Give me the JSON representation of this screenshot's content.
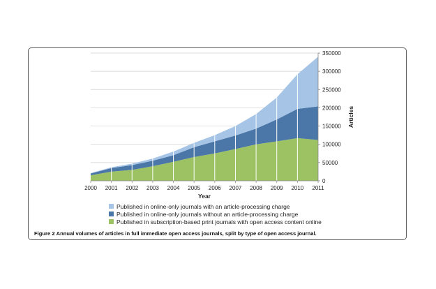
{
  "caption": {
    "label": "Figure 2",
    "text": "Annual volumes of articles in full immediate open access journals, split by type of open access journal."
  },
  "chart_data": {
    "type": "area",
    "stacked": true,
    "x": [
      2000,
      2001,
      2002,
      2003,
      2004,
      2005,
      2006,
      2007,
      2008,
      2009,
      2010,
      2011
    ],
    "xlabel": "Year",
    "ylabel": "Articles",
    "ylim": [
      0,
      350000
    ],
    "yticks": [
      0,
      50000,
      100000,
      150000,
      200000,
      250000,
      300000,
      350000
    ],
    "ytick_labels": [
      "0",
      "50000",
      "100000",
      "150000",
      "200000",
      "250000",
      "300000",
      "350000"
    ],
    "y_axis_side": "right",
    "grid": true,
    "legend_position": "bottom",
    "series": [
      {
        "name": "Published in subscription-based print journals with open access content online",
        "color": "#9dc263",
        "values": [
          15000,
          25000,
          30000,
          40000,
          52000,
          65000,
          75000,
          87000,
          100000,
          108000,
          117000,
          112000
        ]
      },
      {
        "name": "Published in online-only journals without an article-processing charge",
        "color": "#4a77a8",
        "values": [
          5000,
          10000,
          13000,
          15000,
          18000,
          27000,
          33000,
          37000,
          43000,
          60000,
          80000,
          92000
        ]
      },
      {
        "name": "Published in online-only journals with an article-processing charge",
        "color": "#a5c4e6",
        "values": [
          1000,
          2000,
          4000,
          6000,
          10000,
          12000,
          17000,
          26000,
          40000,
          60000,
          95000,
          136000
        ]
      }
    ],
    "legend_order": [
      2,
      1,
      0
    ]
  }
}
